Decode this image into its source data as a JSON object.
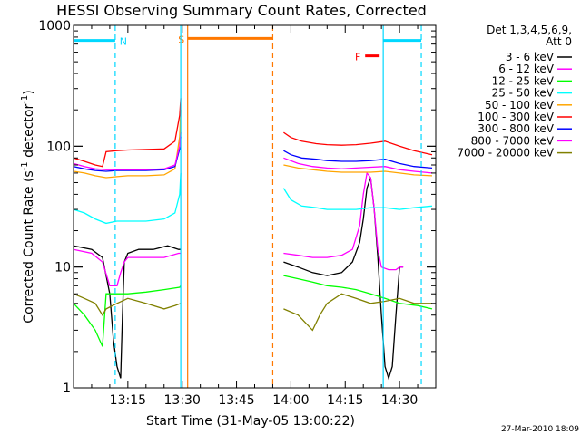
{
  "chart_data": {
    "type": "line",
    "title": "HESSI Observing Summary Count Rates, Corrected",
    "xlabel": "Start Time (31-May-05 13:00:22)",
    "ylabel_main": "Corrected Count Rate (s",
    "ylabel_sup1": "-1",
    "ylabel_mid": " detector",
    "ylabel_sup2": "-1",
    "ylabel_end": ")",
    "yscale": "log",
    "xlim": [
      0,
      100
    ],
    "ylim": [
      1,
      1000
    ],
    "x_unit": "minutes after 13:00",
    "xticks": [
      {
        "v": 15,
        "label": "13:15"
      },
      {
        "v": 30,
        "label": "13:30"
      },
      {
        "v": 45,
        "label": "13:45"
      },
      {
        "v": 60,
        "label": "14:00"
      },
      {
        "v": 75,
        "label": "14:15"
      },
      {
        "v": 90,
        "label": "14:30"
      }
    ],
    "yticks": [
      {
        "v": 1,
        "label": "1"
      },
      {
        "v": 10,
        "label": "10"
      },
      {
        "v": 100,
        "label": "100"
      },
      {
        "v": 1000,
        "label": "1000"
      }
    ],
    "legend": {
      "header1": "Det 1,3,4,5,6,9,",
      "header2": "Att 0",
      "placement": "right"
    },
    "footer_stamp": "27-Mar-2010 18:09",
    "series": [
      {
        "name": "3 - 6 keV",
        "color": "#000000",
        "segments": [
          [
            [
              0,
              15
            ],
            [
              5,
              14
            ],
            [
              8,
              12
            ],
            [
              10,
              6
            ],
            [
              11,
              2.5
            ],
            [
              12,
              1.5
            ],
            [
              13,
              1.2
            ],
            [
              13.5,
              4
            ],
            [
              14,
              11
            ],
            [
              15,
              13
            ],
            [
              18,
              14
            ],
            [
              22,
              14
            ],
            [
              26,
              15
            ],
            [
              29,
              14
            ],
            [
              29.6,
              14
            ]
          ],
          [
            [
              58,
              11
            ],
            [
              62,
              10
            ],
            [
              66,
              9
            ],
            [
              70,
              8.5
            ],
            [
              74,
              9
            ],
            [
              77,
              11
            ],
            [
              79,
              16
            ],
            [
              80,
              25
            ],
            [
              81,
              45
            ],
            [
              82,
              55
            ],
            [
              83,
              30
            ],
            [
              84,
              12
            ],
            [
              85,
              4
            ],
            [
              86,
              1.5
            ],
            [
              87,
              1.2
            ],
            [
              88,
              1.5
            ],
            [
              89,
              4
            ],
            [
              90,
              10
            ],
            [
              91,
              10
            ]
          ]
        ]
      },
      {
        "name": "6 - 12 keV",
        "color": "#ff00ff",
        "segments": [
          [
            [
              0,
              14
            ],
            [
              5,
              13
            ],
            [
              8,
              11
            ],
            [
              10,
              7
            ],
            [
              12,
              7
            ],
            [
              13,
              9
            ],
            [
              14,
              11
            ],
            [
              15,
              12
            ],
            [
              20,
              12
            ],
            [
              25,
              12
            ],
            [
              29,
              13
            ],
            [
              29.6,
              13
            ]
          ],
          [
            [
              58,
              13
            ],
            [
              62,
              12.5
            ],
            [
              66,
              12
            ],
            [
              70,
              12
            ],
            [
              74,
              12.5
            ],
            [
              77,
              14
            ],
            [
              79,
              22
            ],
            [
              80,
              40
            ],
            [
              81,
              60
            ],
            [
              82,
              55
            ],
            [
              83,
              30
            ],
            [
              84,
              14
            ],
            [
              85,
              10
            ],
            [
              87,
              9.5
            ],
            [
              89,
              9.5
            ],
            [
              90,
              10
            ],
            [
              91,
              10
            ]
          ]
        ]
      },
      {
        "name": "12 - 25 keV",
        "color": "#00ff00",
        "segments": [
          [
            [
              0,
              5
            ],
            [
              3,
              4
            ],
            [
              6,
              3
            ],
            [
              8,
              2.2
            ],
            [
              9,
              6
            ],
            [
              12,
              6
            ],
            [
              15,
              6
            ],
            [
              20,
              6.2
            ],
            [
              25,
              6.5
            ],
            [
              29.3,
              6.8
            ],
            [
              29.6,
              7
            ]
          ],
          [
            [
              58,
              8.5
            ],
            [
              62,
              8
            ],
            [
              66,
              7.5
            ],
            [
              70,
              7
            ],
            [
              74,
              6.8
            ],
            [
              78,
              6.5
            ],
            [
              82,
              6
            ],
            [
              86,
              5.5
            ],
            [
              90,
              5
            ],
            [
              95,
              4.8
            ],
            [
              99,
              4.5
            ]
          ]
        ]
      },
      {
        "name": "25 - 50 keV",
        "color": "#00ffff",
        "segments": [
          [
            [
              0,
              30
            ],
            [
              3,
              28
            ],
            [
              6,
              25
            ],
            [
              9,
              23
            ],
            [
              12,
              24
            ],
            [
              15,
              24
            ],
            [
              20,
              24
            ],
            [
              25,
              25
            ],
            [
              28,
              28
            ],
            [
              29.3,
              40
            ],
            [
              29.6,
              60
            ]
          ],
          [
            [
              58,
              45
            ],
            [
              60,
              36
            ],
            [
              63,
              32
            ],
            [
              67,
              31
            ],
            [
              70,
              30
            ],
            [
              74,
              30
            ],
            [
              78,
              30
            ],
            [
              82,
              31
            ],
            [
              86,
              31
            ],
            [
              90,
              30
            ],
            [
              94,
              31
            ],
            [
              99,
              32
            ]
          ]
        ]
      },
      {
        "name": "50 - 100 keV",
        "color": "#ffa500",
        "segments": [
          [
            [
              0,
              62
            ],
            [
              3,
              60
            ],
            [
              6,
              57
            ],
            [
              9,
              55
            ],
            [
              12,
              56
            ],
            [
              15,
              57
            ],
            [
              20,
              57
            ],
            [
              25,
              58
            ],
            [
              28,
              65
            ],
            [
              29.3,
              120
            ],
            [
              29.6,
              200
            ]
          ],
          [
            [
              58,
              70
            ],
            [
              62,
              66
            ],
            [
              66,
              64
            ],
            [
              70,
              62
            ],
            [
              74,
              61
            ],
            [
              78,
              61
            ],
            [
              82,
              61
            ],
            [
              86,
              62
            ],
            [
              90,
              60
            ],
            [
              94,
              58
            ],
            [
              99,
              57
            ]
          ]
        ]
      },
      {
        "name": "100 - 300 keV",
        "color": "#ff0000",
        "segments": [
          [
            [
              0,
              80
            ],
            [
              3,
              75
            ],
            [
              6,
              70
            ],
            [
              8,
              68
            ],
            [
              9,
              90
            ],
            [
              12,
              92
            ],
            [
              15,
              93
            ],
            [
              20,
              94
            ],
            [
              25,
              95
            ],
            [
              28,
              110
            ],
            [
              29.3,
              180
            ],
            [
              29.6,
              250
            ]
          ],
          [
            [
              58,
              130
            ],
            [
              60,
              118
            ],
            [
              63,
              110
            ],
            [
              67,
              105
            ],
            [
              70,
              103
            ],
            [
              74,
              102
            ],
            [
              78,
              103
            ],
            [
              82,
              106
            ],
            [
              86,
              110
            ],
            [
              90,
              100
            ],
            [
              94,
              92
            ],
            [
              99,
              85
            ]
          ]
        ]
      },
      {
        "name": "300 - 800 keV",
        "color": "#0000ff",
        "segments": [
          [
            [
              0,
              68
            ],
            [
              3,
              65
            ],
            [
              6,
              63
            ],
            [
              9,
              62
            ],
            [
              12,
              63
            ],
            [
              15,
              63
            ],
            [
              20,
              63
            ],
            [
              25,
              64
            ],
            [
              28,
              68
            ],
            [
              29.3,
              95
            ],
            [
              29.6,
              120
            ]
          ],
          [
            [
              58,
              92
            ],
            [
              60,
              85
            ],
            [
              63,
              80
            ],
            [
              67,
              78
            ],
            [
              70,
              76
            ],
            [
              74,
              75
            ],
            [
              78,
              75
            ],
            [
              82,
              76
            ],
            [
              86,
              78
            ],
            [
              90,
              72
            ],
            [
              94,
              68
            ],
            [
              99,
              66
            ]
          ]
        ]
      },
      {
        "name": "800 - 7000 keV",
        "color": "#ff00ff",
        "segments": [
          [
            [
              0,
              72
            ],
            [
              3,
              68
            ],
            [
              6,
              65
            ],
            [
              9,
              64
            ],
            [
              12,
              64
            ],
            [
              15,
              64
            ],
            [
              20,
              64
            ],
            [
              25,
              65
            ],
            [
              28,
              70
            ],
            [
              29.3,
              100
            ],
            [
              29.6,
              130
            ]
          ],
          [
            [
              58,
              80
            ],
            [
              62,
              72
            ],
            [
              66,
              68
            ],
            [
              70,
              66
            ],
            [
              74,
              65
            ],
            [
              78,
              66
            ],
            [
              82,
              67
            ],
            [
              86,
              68
            ],
            [
              90,
              64
            ],
            [
              94,
              62
            ],
            [
              99,
              60
            ]
          ]
        ]
      },
      {
        "name": "7000 - 20000 keV",
        "color": "#808000",
        "segments": [
          [
            [
              0,
              6
            ],
            [
              3,
              5.5
            ],
            [
              6,
              5
            ],
            [
              8,
              4
            ],
            [
              9,
              4.5
            ],
            [
              12,
              5
            ],
            [
              15,
              5.5
            ],
            [
              20,
              5
            ],
            [
              25,
              4.5
            ],
            [
              28,
              4.8
            ],
            [
              29.6,
              5
            ]
          ],
          [
            [
              58,
              4.5
            ],
            [
              62,
              4
            ],
            [
              66,
              3
            ],
            [
              68,
              4
            ],
            [
              70,
              5
            ],
            [
              74,
              6
            ],
            [
              78,
              5.5
            ],
            [
              82,
              5
            ],
            [
              86,
              5.2
            ],
            [
              90,
              5.5
            ],
            [
              94,
              5
            ],
            [
              99,
              5
            ]
          ]
        ]
      }
    ],
    "events": [
      {
        "letter": "N",
        "color": "#00d8ff",
        "line_x": 11.5,
        "dashed": true,
        "bar_y": 750,
        "bar_x0": 0,
        "bar_x1": 11.5
      },
      {
        "letter": "S",
        "color": "#ff7800",
        "line_x": 31.5,
        "dashed": false,
        "bar_y": 780,
        "bar_x0": 31.5,
        "bar_x1": 55
      },
      {
        "letter": "S_end",
        "color": "#ff7800",
        "line_x": 55,
        "dashed": true
      },
      {
        "letter": "F",
        "color": "#ff0000",
        "line_x": null,
        "dashed": false,
        "bar_y": 560,
        "bar_x0": 80.5,
        "bar_x1": 84.5
      },
      {
        "letter": "N_start",
        "color": "#00d8ff",
        "line_x": 85.5,
        "dashed": false,
        "bar_y": 750,
        "bar_x0": 85.5,
        "bar_x1": 96
      },
      {
        "letter": "N_end",
        "color": "#00d8ff",
        "line_x": 96,
        "dashed": true
      },
      {
        "letter": "N_left",
        "color": "#00d8ff",
        "line_x": 29.6,
        "dashed": false
      }
    ],
    "event_labels": {
      "N": "N",
      "S": "S",
      "F": "F"
    }
  }
}
